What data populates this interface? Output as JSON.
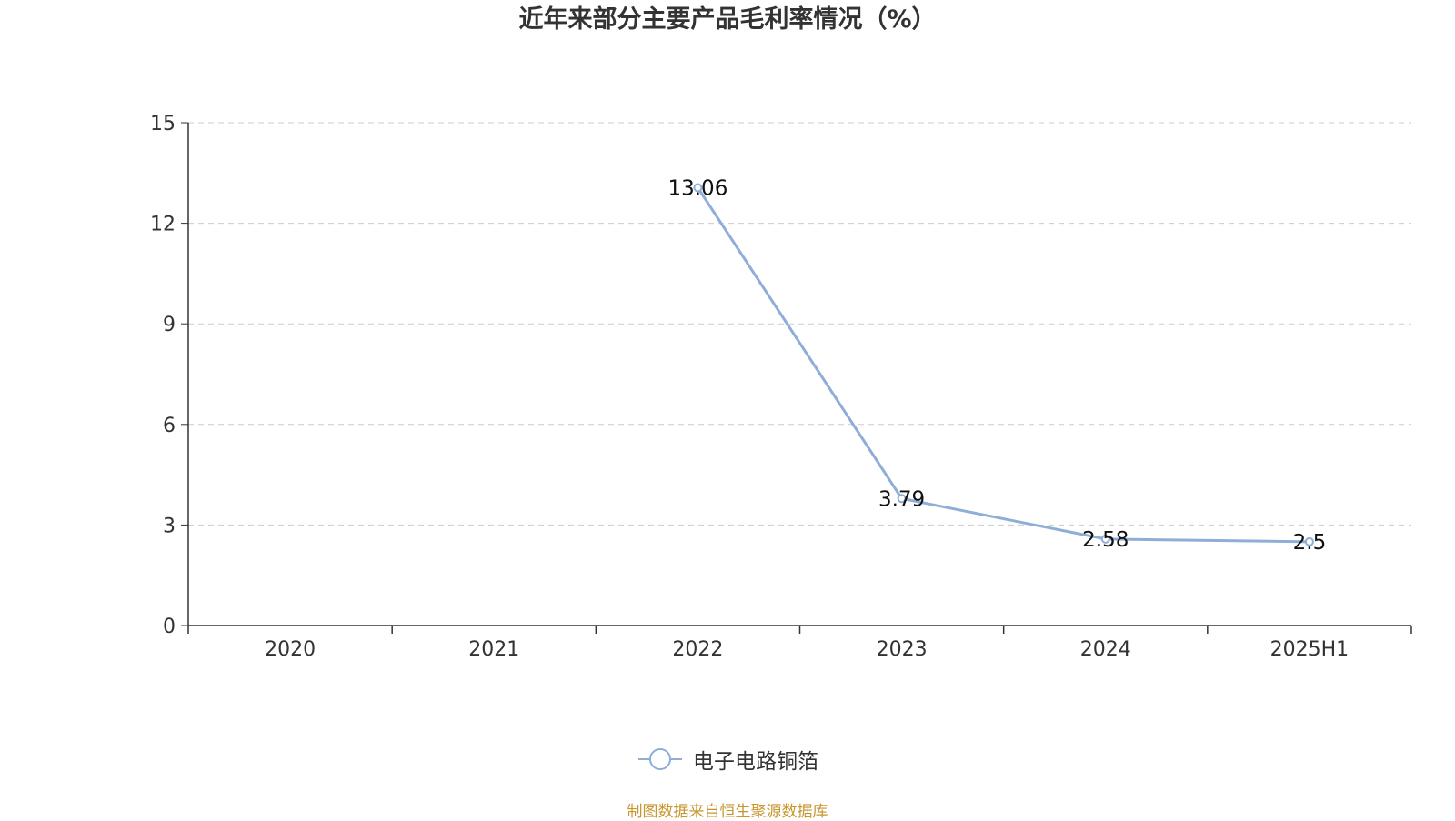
{
  "chart_data": {
    "type": "line",
    "title": "近年来部分主要产品毛利率情况（%）",
    "categories": [
      "2020",
      "2021",
      "2022",
      "2023",
      "2024",
      "2025H1"
    ],
    "series": [
      {
        "name": "电子电路铜箔",
        "color": "#8eaed8",
        "values": [
          null,
          null,
          13.06,
          3.79,
          2.58,
          2.5
        ],
        "labels": [
          "",
          "",
          "13.06",
          "3.79",
          "2.58",
          "2.5"
        ]
      }
    ],
    "ylim": [
      0,
      15
    ],
    "yticks": [
      {
        "value": 0,
        "label": "0"
      },
      {
        "value": 3,
        "label": "3"
      },
      {
        "value": 6,
        "label": "6"
      },
      {
        "value": 9,
        "label": "9"
      },
      {
        "value": 12,
        "label": "12"
      },
      {
        "value": 15,
        "label": "15"
      }
    ],
    "grid": true,
    "legend_position": "bottom-center"
  },
  "source_note": "制图数据来自恒生聚源数据库"
}
